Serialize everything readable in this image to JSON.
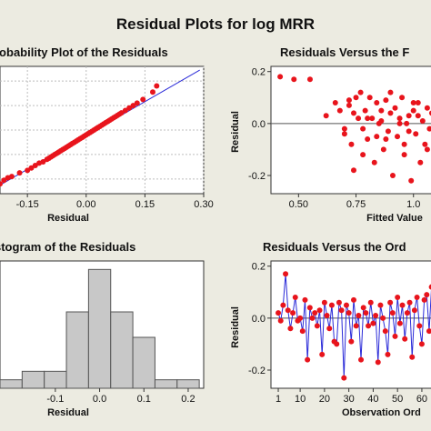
{
  "figure": {
    "title": "Residual Plots for log MRR"
  },
  "colors": {
    "background": "#ecebe1",
    "panel": "#ffffff",
    "point": "#e8141c",
    "line": "#2a2ad8",
    "bar_fill": "#c8c8c8",
    "bar_stroke": "#555555"
  },
  "chart_data": [
    {
      "type": "scatter",
      "title": "Normal Probability Plot of the Residuals",
      "title_visible": "robability Plot of the Residuals",
      "xlabel": "Residual",
      "ylabel": "",
      "xlim": [
        -0.22,
        0.3
      ],
      "ylim": [
        -2.6,
        2.6
      ],
      "x_ticks": [
        -0.15,
        0.0,
        0.15,
        0.3
      ],
      "x_tick_labels": [
        "-0.15",
        "0.00",
        "0.15",
        "0.30"
      ],
      "grid": "both",
      "fit_line": [
        [
          -0.22,
          -2.25
        ],
        [
          0.29,
          2.45
        ]
      ],
      "series": [
        {
          "x": [
            -0.22,
            -0.21,
            -0.2,
            -0.19,
            -0.17,
            -0.15,
            -0.14,
            -0.13,
            -0.12,
            -0.11,
            -0.1,
            -0.095,
            -0.09,
            -0.085,
            -0.08,
            -0.075,
            -0.07,
            -0.065,
            -0.06,
            -0.055,
            -0.05,
            -0.045,
            -0.04,
            -0.035,
            -0.03,
            -0.025,
            -0.02,
            -0.015,
            -0.01,
            -0.005,
            0.0,
            0.005,
            0.01,
            0.015,
            0.02,
            0.025,
            0.03,
            0.035,
            0.04,
            0.045,
            0.05,
            0.055,
            0.06,
            0.065,
            0.07,
            0.075,
            0.08,
            0.085,
            0.09,
            0.1,
            0.11,
            0.12,
            0.13,
            0.145,
            0.17,
            0.18
          ],
          "y": [
            -2.2,
            -2.05,
            -1.95,
            -1.9,
            -1.75,
            -1.65,
            -1.55,
            -1.45,
            -1.35,
            -1.3,
            -1.2,
            -1.15,
            -1.1,
            -1.05,
            -1.0,
            -0.95,
            -0.9,
            -0.85,
            -0.8,
            -0.75,
            -0.7,
            -0.65,
            -0.6,
            -0.55,
            -0.5,
            -0.45,
            -0.4,
            -0.35,
            -0.3,
            -0.25,
            -0.2,
            -0.15,
            -0.1,
            -0.05,
            0.0,
            0.05,
            0.1,
            0.15,
            0.2,
            0.25,
            0.3,
            0.35,
            0.4,
            0.45,
            0.5,
            0.55,
            0.6,
            0.65,
            0.7,
            0.8,
            0.9,
            1.0,
            1.1,
            1.25,
            1.55,
            1.8
          ]
        }
      ]
    },
    {
      "type": "scatter",
      "title": "Residuals Versus the Fitted Values",
      "title_visible": "Residuals Versus the F",
      "xlabel": "Fitted Value",
      "ylabel": "Residual",
      "xlim": [
        0.38,
        1.1
      ],
      "ylim": [
        -0.27,
        0.22
      ],
      "x_ticks": [
        0.5,
        0.75,
        1.0
      ],
      "x_tick_labels": [
        "0.50",
        "0.75",
        "1.0"
      ],
      "y_ticks": [
        -0.2,
        0.0,
        0.2
      ],
      "y_tick_labels": [
        "-0.2",
        "0.0",
        "0.2"
      ],
      "reference_line": 0,
      "series": [
        {
          "x": [
            0.42,
            0.48,
            0.55,
            0.62,
            0.66,
            0.68,
            0.7,
            0.72,
            0.73,
            0.74,
            0.75,
            0.76,
            0.77,
            0.78,
            0.79,
            0.8,
            0.81,
            0.82,
            0.83,
            0.84,
            0.85,
            0.86,
            0.87,
            0.88,
            0.89,
            0.9,
            0.91,
            0.92,
            0.93,
            0.94,
            0.95,
            0.96,
            0.97,
            0.98,
            0.99,
            1.0,
            1.01,
            1.02,
            1.03,
            1.04,
            1.05,
            1.06,
            1.07,
            1.08,
            1.09,
            0.72,
            0.78,
            0.84,
            0.9,
            0.96,
            1.02,
            0.7,
            0.8,
            0.88,
            0.94,
            1.0,
            1.06,
            0.74,
            0.86,
            0.98
          ],
          "y": [
            0.18,
            0.17,
            0.17,
            0.03,
            0.08,
            0.05,
            -0.02,
            0.09,
            -0.08,
            -0.18,
            0.1,
            0.02,
            0.12,
            -0.12,
            0.05,
            -0.06,
            0.1,
            0.02,
            -0.15,
            0.08,
            0.0,
            0.05,
            -0.1,
            0.09,
            -0.03,
            0.04,
            -0.2,
            0.06,
            -0.05,
            0.02,
            0.1,
            -0.08,
            0.0,
            0.03,
            -0.22,
            0.05,
            -0.04,
            0.08,
            -0.15,
            0.01,
            -0.08,
            0.06,
            -0.02,
            0.04,
            0.02,
            0.07,
            -0.02,
            -0.05,
            0.12,
            -0.12,
            0.03,
            -0.04,
            0.02,
            -0.06,
            0.0,
            0.08,
            -0.1,
            0.04,
            0.01,
            -0.03
          ]
        }
      ]
    },
    {
      "type": "bar",
      "title": "Histogram of the Residuals",
      "title_visible": "stogram of the Residuals",
      "xlabel": "Residual",
      "ylabel": "",
      "xlim": [
        -0.225,
        0.235
      ],
      "x_ticks": [
        -0.1,
        0.0,
        0.1,
        0.2
      ],
      "x_tick_labels": [
        "-0.1",
        "0.0",
        "0.1",
        "0.2"
      ],
      "bin_edges": [
        -0.225,
        -0.175,
        -0.125,
        -0.075,
        -0.025,
        0.025,
        0.075,
        0.125,
        0.175,
        0.225
      ],
      "values": [
        1,
        2,
        2,
        9,
        14,
        9,
        6,
        1,
        1
      ],
      "ylim": [
        0,
        15
      ]
    },
    {
      "type": "line",
      "title": "Residuals Versus the Order of the Data",
      "title_visible": "Residuals Versus the Ord",
      "xlabel": "Observation Order",
      "xlabel_visible": "Observation Ord",
      "ylabel": "Residual",
      "xlim": [
        -2,
        66
      ],
      "ylim": [
        -0.27,
        0.22
      ],
      "x_ticks": [
        1,
        10,
        20,
        30,
        40,
        50,
        60
      ],
      "x_tick_labels": [
        "1",
        "10",
        "20",
        "30",
        "40",
        "50",
        "60"
      ],
      "y_ticks": [
        -0.2,
        0.0,
        0.2
      ],
      "y_tick_labels": [
        "-0.2",
        "0.0",
        "0.2"
      ],
      "reference_line": 0,
      "series": [
        {
          "x": [
            1,
            2,
            3,
            4,
            5,
            6,
            7,
            8,
            9,
            10,
            11,
            12,
            13,
            14,
            15,
            16,
            17,
            18,
            19,
            20,
            21,
            22,
            23,
            24,
            25,
            26,
            27,
            28,
            29,
            30,
            31,
            32,
            33,
            34,
            35,
            36,
            37,
            38,
            39,
            40,
            41,
            42,
            43,
            44,
            45,
            46,
            47,
            48,
            49,
            50,
            51,
            52,
            53,
            54,
            55,
            56,
            57,
            58,
            59,
            60,
            61,
            62,
            63,
            64,
            65
          ],
          "y": [
            0.02,
            -0.01,
            0.05,
            0.17,
            0.03,
            -0.04,
            0.02,
            0.08,
            -0.01,
            0.0,
            -0.05,
            0.07,
            -0.16,
            0.04,
            0.0,
            0.02,
            -0.03,
            0.03,
            -0.14,
            0.06,
            0.01,
            -0.04,
            0.05,
            -0.09,
            -0.1,
            0.06,
            0.03,
            -0.23,
            0.05,
            0.02,
            -0.09,
            0.07,
            -0.03,
            0.01,
            -0.16,
            0.04,
            0.02,
            -0.03,
            0.06,
            -0.02,
            0.01,
            -0.17,
            0.05,
            0.0,
            -0.05,
            -0.14,
            0.06,
            0.02,
            -0.07,
            0.08,
            -0.02,
            0.05,
            -0.08,
            0.02,
            0.06,
            -0.15,
            0.03,
            0.08,
            -0.03,
            -0.1,
            0.07,
            0.09,
            -0.05,
            0.12,
            0.18
          ]
        }
      ]
    }
  ]
}
